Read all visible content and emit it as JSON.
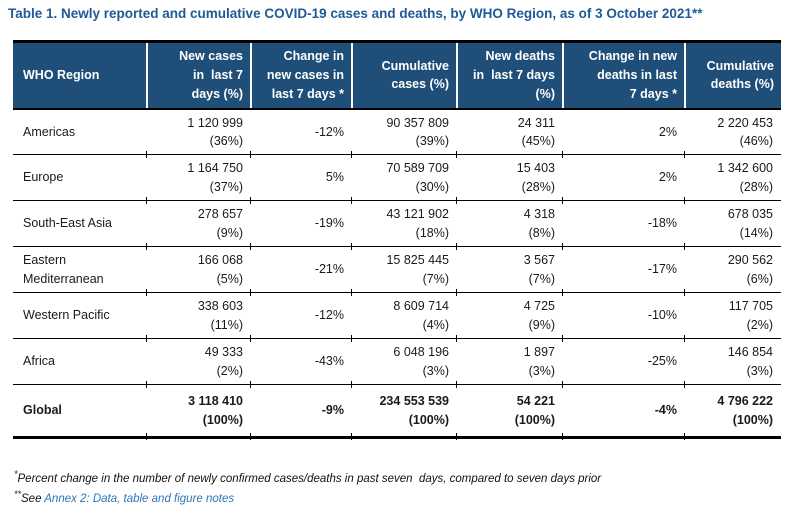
{
  "title": "Table 1. Newly reported and cumulative COVID-19 cases and deaths, by WHO Region, as of 3 October 2021**",
  "colors": {
    "title_blue": "#1E5A97",
    "header_background": "#1F4E79",
    "header_text": "#FFFFFF",
    "link_blue": "#2E75B6",
    "border_black": "#000000"
  },
  "table": {
    "columns": [
      {
        "label": "WHO Region"
      },
      {
        "label": "New cases\nin  last 7\ndays (%)"
      },
      {
        "label": "Change in\nnew cases in\nlast 7 days *"
      },
      {
        "label": "Cumulative\ncases (%)"
      },
      {
        "label": "New deaths\nin  last 7 days\n(%)"
      },
      {
        "label": "Change in new\ndeaths in last\n7 days *"
      },
      {
        "label": "Cumulative\ndeaths (%)"
      }
    ],
    "rows": [
      {
        "region": "Americas",
        "new_cases": "1 120 999\n(36%)",
        "change_cases": "-12%",
        "cum_cases": "90 357 809\n(39%)",
        "new_deaths": "24 311\n(45%)",
        "change_deaths": "2%",
        "cum_deaths": "2 220 453\n(46%)"
      },
      {
        "region": "Europe",
        "new_cases": "1 164 750\n(37%)",
        "change_cases": "5%",
        "cum_cases": "70 589 709\n(30%)",
        "new_deaths": "15 403\n(28%)",
        "change_deaths": "2%",
        "cum_deaths": "1 342 600\n(28%)"
      },
      {
        "region": "South-East Asia",
        "new_cases": "278 657\n(9%)",
        "change_cases": "-19%",
        "cum_cases": "43 121 902\n(18%)",
        "new_deaths": "4 318\n(8%)",
        "change_deaths": "-18%",
        "cum_deaths": "678 035\n(14%)"
      },
      {
        "region": "Eastern\nMediterranean",
        "new_cases": "166 068\n(5%)",
        "change_cases": "-21%",
        "cum_cases": "15 825 445\n(7%)",
        "new_deaths": "3 567\n(7%)",
        "change_deaths": "-17%",
        "cum_deaths": "290 562\n(6%)"
      },
      {
        "region": "Western Pacific",
        "new_cases": "338 603\n(11%)",
        "change_cases": "-12%",
        "cum_cases": "8 609 714\n(4%)",
        "new_deaths": "4 725\n(9%)",
        "change_deaths": "-10%",
        "cum_deaths": "117 705\n(2%)"
      },
      {
        "region": "Africa",
        "new_cases": "49 333\n(2%)",
        "change_cases": "-43%",
        "cum_cases": "6 048 196\n(3%)",
        "new_deaths": "1 897\n(3%)",
        "change_deaths": "-25%",
        "cum_deaths": "146 854\n(3%)"
      },
      {
        "region": "Global",
        "new_cases": "3 118 410\n(100%)",
        "change_cases": "-9%",
        "cum_cases": "234 553 539\n(100%)",
        "new_deaths": "54 221\n(100%)",
        "change_deaths": "-4%",
        "cum_deaths": "4 796 222\n(100%)"
      }
    ]
  },
  "footnotes": [
    {
      "sup": "*",
      "text": "Percent change in the number of newly confirmed cases/deaths in past seven  days, compared to seven days prior"
    },
    {
      "sup": "**",
      "text": "See ",
      "link_text": "Annex 2: Data, table and figure notes"
    }
  ]
}
